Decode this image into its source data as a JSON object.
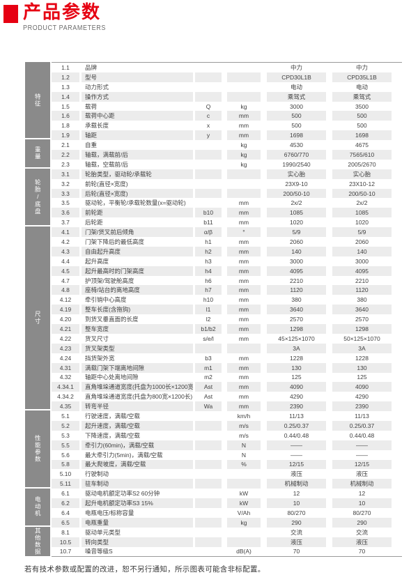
{
  "header": {
    "title": "产品参数",
    "subtitle": "PRODUCT PARAMETERS",
    "accent_color": "#e60012"
  },
  "footer": {
    "note": "若有技术参数或配置的改进，恕不另行通知，所示图表可能含非标配置。"
  },
  "table": {
    "row_gray": "#ececec",
    "category_gray": "#8a8a8a",
    "sections": [
      {
        "label": "特征",
        "rows": [
          [
            "1.1",
            "品牌",
            "",
            "",
            "中力",
            "中力"
          ],
          [
            "1.2",
            "型号",
            "",
            "",
            "CPD30L1B",
            "CPD35L1B"
          ],
          [
            "1.3",
            "动力形式",
            "",
            "",
            "电动",
            "电动"
          ],
          [
            "1.4",
            "操作方式",
            "",
            "",
            "乘驾式",
            "乘驾式"
          ],
          [
            "1.5",
            "载荷",
            "Q",
            "kg",
            "3000",
            "3500"
          ],
          [
            "1.6",
            "载荷中心距",
            "c",
            "mm",
            "500",
            "500"
          ],
          [
            "1.8",
            "承载长度",
            "x",
            "mm",
            "500",
            "500"
          ],
          [
            "1.9",
            "轴距",
            "y",
            "mm",
            "1698",
            "1698"
          ]
        ]
      },
      {
        "label": "重量",
        "rows": [
          [
            "2.1",
            "自重",
            "",
            "kg",
            "4530",
            "4675"
          ],
          [
            "2.2",
            "轴载，满载前/后",
            "",
            "kg",
            "6760/770",
            "7565/610"
          ],
          [
            "2.3",
            "轴载，空载前/后",
            "",
            "kg",
            "1990/2540",
            "2005/2670"
          ]
        ]
      },
      {
        "label": "轮胎/底盘",
        "rows": [
          [
            "3.1",
            "轮胎类型，驱动轮/承载轮",
            "",
            "",
            "实心胎",
            "实心胎"
          ],
          [
            "3.2",
            "前轮(直径×宽度)",
            "",
            "",
            "23X9-10",
            "23X10-12"
          ],
          [
            "3.3",
            "后轮(直径×宽度)",
            "",
            "",
            "200/50-10",
            "200/50-10"
          ],
          [
            "3.5",
            "驱动轮，平衡轮/承载轮数量(x=驱动轮)",
            "",
            "mm",
            "2x/2",
            "2x/2"
          ],
          [
            "3.6",
            "前轮距",
            "b10",
            "mm",
            "1085",
            "1085"
          ],
          [
            "3.7",
            "后轮距",
            "b11",
            "mm",
            "1020",
            "1020"
          ]
        ]
      },
      {
        "label": "尺寸",
        "rows": [
          [
            "4.1",
            "门架/货叉前后倾角",
            "α/β",
            "°",
            "5/9",
            "5/9"
          ],
          [
            "4.2",
            "门架下降后的最低高度",
            "h1",
            "mm",
            "2060",
            "2060"
          ],
          [
            "4.3",
            "自由起升高度",
            "h2",
            "mm",
            "140",
            "140"
          ],
          [
            "4.4",
            "起升高度",
            "h3",
            "mm",
            "3000",
            "3000"
          ],
          [
            "4.5",
            "起升最高时的门架高度",
            "h4",
            "mm",
            "4095",
            "4095"
          ],
          [
            "4.7",
            "护顶架/驾驶舱高度",
            "h6",
            "mm",
            "2210",
            "2210"
          ],
          [
            "4.8",
            "座椅/站台的离地高度",
            "h7",
            "mm",
            "1120",
            "1120"
          ],
          [
            "4.12",
            "牵引销中心高度",
            "h10",
            "mm",
            "380",
            "380"
          ],
          [
            "4.19",
            "整车长度(含拖钩)",
            "l1",
            "mm",
            "3640",
            "3640"
          ],
          [
            "4.20",
            "到货叉垂直面的长度",
            "l2",
            "mm",
            "2570",
            "2570"
          ],
          [
            "4.21",
            "整车宽度",
            "b1/b2",
            "mm",
            "1298",
            "1298"
          ],
          [
            "4.22",
            "货叉尺寸",
            "s/e/l",
            "mm",
            "45×125×1070",
            "50×125×1070"
          ],
          [
            "4.23",
            "货叉架类型",
            "",
            "",
            "3A",
            "3A"
          ],
          [
            "4.24",
            "挡货架外宽",
            "b3",
            "mm",
            "1228",
            "1228"
          ],
          [
            "4.31",
            "满载门架下端离地间隙",
            "m1",
            "mm",
            "130",
            "130"
          ],
          [
            "4.32",
            "轴距中心处离地间隙",
            "m2",
            "mm",
            "125",
            "125"
          ],
          [
            "4.34.1",
            "直角堆垛通道宽度(托盘为1000长×1200宽)",
            "Ast",
            "mm",
            "4090",
            "4090"
          ],
          [
            "4.34.2",
            "直角堆垛通道宽度(托盘为800宽×1200长)",
            "Ast",
            "mm",
            "4290",
            "4290"
          ],
          [
            "4.35",
            "转弯半径",
            "Wa",
            "mm",
            "2390",
            "2390"
          ]
        ]
      },
      {
        "label": "性能参数",
        "rows": [
          [
            "5.1",
            "行驶速度，满载/空载",
            "",
            "km/h",
            "11/13",
            "11/13"
          ],
          [
            "5.2",
            "起升速度，满载/空载",
            "",
            "m/s",
            "0.25/0.37",
            "0.25/0.37"
          ],
          [
            "5.3",
            "下降速度，满载/空载",
            "",
            "m/s",
            "0.44/0.48",
            "0.44/0.48"
          ],
          [
            "5.5",
            "牵引力(60min)，满载/空载",
            "",
            "N",
            "——",
            "——"
          ],
          [
            "5.6",
            "最大牵引力(5min)，满载/空载",
            "",
            "N",
            "——",
            "——"
          ],
          [
            "5.8",
            "最大爬坡度，满载/空载",
            "",
            "%",
            "12/15",
            "12/15"
          ],
          [
            "5.10",
            "行驶制动",
            "",
            "",
            "液压",
            "液压"
          ],
          [
            "5.11",
            "驻车制动",
            "",
            "",
            "机械制动",
            "机械制动"
          ]
        ]
      },
      {
        "label": "电动机",
        "rows": [
          [
            "6.1",
            "驱动电机额定功率S2 60分钟",
            "",
            "kW",
            "12",
            "12"
          ],
          [
            "6.2",
            "起升电机额定功率S3 15%",
            "",
            "kW",
            "10",
            "10"
          ],
          [
            "6.4",
            "电瓶电压/标称容量",
            "",
            "V/Ah",
            "80/270",
            "80/270"
          ],
          [
            "6.5",
            "电瓶重量",
            "",
            "kg",
            "290",
            "290"
          ]
        ]
      },
      {
        "label": "其他数据",
        "rows": [
          [
            "8.1",
            "驱动单元类型",
            "",
            "",
            "交流",
            "交流"
          ],
          [
            "10.5",
            "转向类型",
            "",
            "",
            "液压",
            "液压"
          ],
          [
            "10.7",
            "噪音等级S",
            "",
            "dB(A)",
            "70",
            "70"
          ]
        ]
      }
    ]
  }
}
